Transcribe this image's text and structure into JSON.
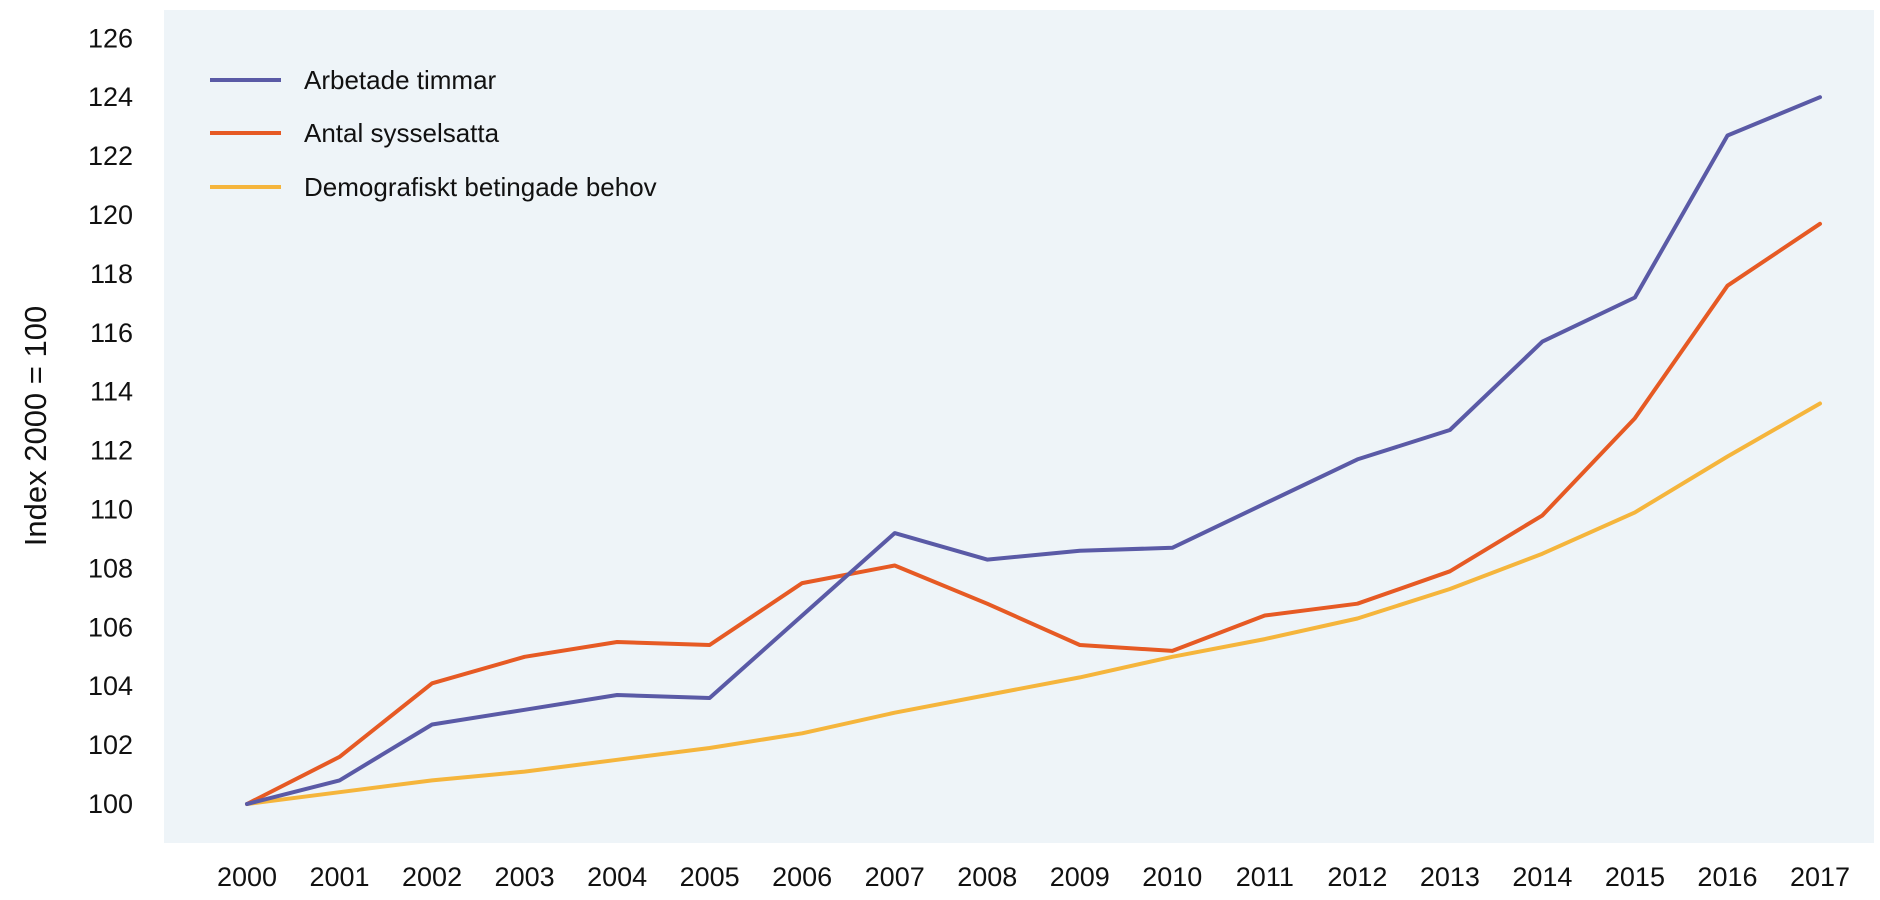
{
  "chart_data": {
    "type": "line",
    "title": "",
    "xlabel": "",
    "ylabel": "Index 2000 = 100",
    "ylim": [
      99,
      127
    ],
    "yticks": [
      100,
      102,
      104,
      106,
      108,
      110,
      112,
      114,
      116,
      118,
      120,
      122,
      124,
      126
    ],
    "x": [
      "2000",
      "2001",
      "2002",
      "2003",
      "2004",
      "2005",
      "2006",
      "2007",
      "2008",
      "2009",
      "2010",
      "2011",
      "2012",
      "2013",
      "2014",
      "2015",
      "2016",
      "2017"
    ],
    "grid": false,
    "legend_position": "top-left",
    "background": "#eef4f8",
    "series": [
      {
        "name": "Arbetade timmar",
        "color": "#5a5aa6",
        "values": [
          100.0,
          100.8,
          102.7,
          103.2,
          103.7,
          103.6,
          106.4,
          109.2,
          108.3,
          108.6,
          108.7,
          110.2,
          111.7,
          112.7,
          115.7,
          117.2,
          122.7,
          124.0
        ]
      },
      {
        "name": "Antal sysselsatta",
        "color": "#e65a24",
        "values": [
          100.0,
          101.6,
          104.1,
          105.0,
          105.5,
          105.4,
          107.5,
          108.1,
          106.8,
          105.4,
          105.2,
          106.4,
          106.8,
          107.9,
          109.8,
          113.1,
          117.6,
          119.7
        ]
      },
      {
        "name": "Demografiskt betingade behov",
        "color": "#f5b53c",
        "values": [
          100.0,
          100.4,
          100.8,
          101.1,
          101.5,
          101.9,
          102.4,
          103.1,
          103.7,
          104.3,
          105.0,
          105.6,
          106.3,
          107.3,
          108.5,
          109.9,
          111.8,
          113.6
        ]
      }
    ]
  }
}
